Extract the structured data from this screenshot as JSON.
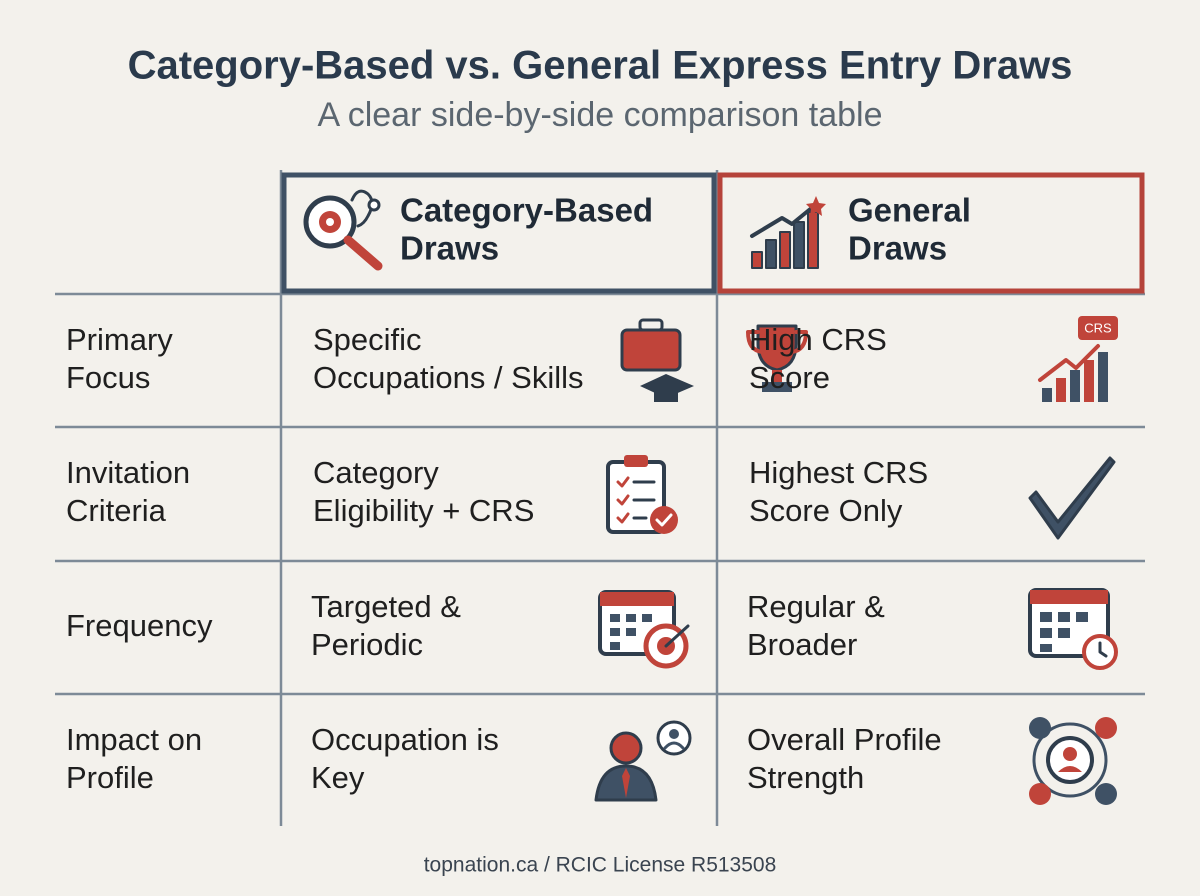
{
  "header": {
    "title": "Category-Based vs. General Express Entry Draws",
    "subtitle": "A clear side-by-side comparison table"
  },
  "table": {
    "columns": [
      [
        "Category-Based",
        "Draws"
      ],
      [
        "General",
        "Draws"
      ]
    ],
    "rows": [
      {
        "label": [
          "Primary",
          "Focus"
        ],
        "cells": [
          [
            "Specific",
            "Occupations / Skills"
          ],
          [
            "High CRS",
            "Score"
          ]
        ],
        "badge": "CRS"
      },
      {
        "label": [
          "Invitation",
          "Criteria"
        ],
        "cells": [
          [
            "Category",
            "Eligibility + CRS"
          ],
          [
            "Highest CRS",
            "Score Only"
          ]
        ]
      },
      {
        "label": [
          "Frequency"
        ],
        "cells": [
          [
            "Targeted &",
            "Periodic"
          ],
          [
            "Regular &",
            "Broader"
          ]
        ]
      },
      {
        "label": [
          "Impact on",
          "Profile"
        ],
        "cells": [
          [
            "Occupation is",
            "Key"
          ],
          [
            "Overall Profile",
            "Strength"
          ]
        ]
      }
    ]
  },
  "footer": "topnation.ca / RCIC License R513508"
}
